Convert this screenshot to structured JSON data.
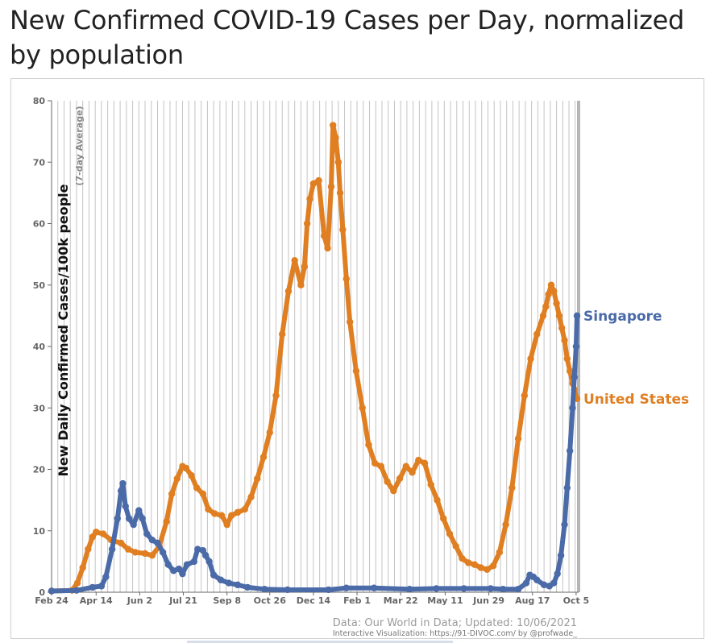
{
  "page": {
    "title": "New Confirmed COVID-19 Cases per Day, normalized by population"
  },
  "chart_data": {
    "type": "line",
    "title": "New Confirmed COVID-19 Cases per Day, normalized by population",
    "ylabel": "New Daily Confirmed Cases/100k people",
    "ylabel_sub": "(7-day Average)",
    "xlabel": "",
    "ylim": [
      0,
      80
    ],
    "y_ticks": [
      0,
      10,
      20,
      30,
      40,
      50,
      60,
      70,
      80
    ],
    "x_range": [
      "2020-02-24",
      "2021-10-06"
    ],
    "x_ticks": [
      {
        "label": "Feb 24",
        "date": "2020-02-24"
      },
      {
        "label": "Apr 14",
        "date": "2020-04-14"
      },
      {
        "label": "Jun 2",
        "date": "2020-06-02"
      },
      {
        "label": "Jul 21",
        "date": "2020-07-21"
      },
      {
        "label": "Sep 8",
        "date": "2020-09-08"
      },
      {
        "label": "Oct 26",
        "date": "2020-10-26"
      },
      {
        "label": "Dec 14",
        "date": "2020-12-14"
      },
      {
        "label": "Feb 1",
        "date": "2021-02-01"
      },
      {
        "label": "Mar 22",
        "date": "2021-03-22"
      },
      {
        "label": "May 11",
        "date": "2021-05-11"
      },
      {
        "label": "Jun 29",
        "date": "2021-06-29"
      },
      {
        "label": "Aug 17",
        "date": "2021-08-17"
      },
      {
        "label": "Oct 5",
        "date": "2021-10-05"
      }
    ],
    "grid": "vertical weekly lines",
    "series": [
      {
        "name": "Singapore",
        "color": "#4a6aa8",
        "x": [
          "2020-02-24",
          "2020-03-23",
          "2020-04-10",
          "2020-04-20",
          "2020-04-25",
          "2020-05-02",
          "2020-05-08",
          "2020-05-12",
          "2020-05-14",
          "2020-05-17",
          "2020-05-21",
          "2020-05-26",
          "2020-06-01",
          "2020-06-05",
          "2020-06-10",
          "2020-06-16",
          "2020-06-22",
          "2020-06-28",
          "2020-07-04",
          "2020-07-10",
          "2020-07-16",
          "2020-07-20",
          "2020-07-25",
          "2020-08-02",
          "2020-08-06",
          "2020-08-12",
          "2020-08-15",
          "2020-08-19",
          "2020-08-24",
          "2020-09-01",
          "2020-09-10",
          "2020-09-20",
          "2020-10-01",
          "2020-10-20",
          "2020-11-15",
          "2020-12-31",
          "2021-01-20",
          "2021-02-20",
          "2021-04-01",
          "2021-05-01",
          "2021-06-01",
          "2021-07-01",
          "2021-07-15",
          "2021-08-01",
          "2021-08-10",
          "2021-08-14",
          "2021-08-18",
          "2021-08-22",
          "2021-08-30",
          "2021-09-05",
          "2021-09-10",
          "2021-09-14",
          "2021-09-18",
          "2021-09-22",
          "2021-09-25",
          "2021-09-28",
          "2021-10-01",
          "2021-10-03",
          "2021-10-05",
          "2021-10-06"
        ],
        "values": [
          0.2,
          0.3,
          0.8,
          1.0,
          2.5,
          7.0,
          12.0,
          16.5,
          17.7,
          14.0,
          12.0,
          11.0,
          13.3,
          12.0,
          9.5,
          8.5,
          8.0,
          6.5,
          4.5,
          3.5,
          3.8,
          3.0,
          4.5,
          5.0,
          7.0,
          6.8,
          6.0,
          5.0,
          2.8,
          2.0,
          1.5,
          1.2,
          0.8,
          0.5,
          0.4,
          0.4,
          0.7,
          0.7,
          0.5,
          0.6,
          0.6,
          0.6,
          0.5,
          0.5,
          1.5,
          2.8,
          2.5,
          2.0,
          1.2,
          1.0,
          1.5,
          3.0,
          6.0,
          11.0,
          17.0,
          23.0,
          30.0,
          35.0,
          40.0,
          45.0
        ]
      },
      {
        "name": "United States",
        "color": "#e07f22",
        "x": [
          "2020-02-24",
          "2020-03-18",
          "2020-03-24",
          "2020-03-30",
          "2020-04-05",
          "2020-04-10",
          "2020-04-14",
          "2020-04-22",
          "2020-05-01",
          "2020-05-12",
          "2020-05-20",
          "2020-05-28",
          "2020-06-08",
          "2020-06-16",
          "2020-06-24",
          "2020-07-02",
          "2020-07-08",
          "2020-07-14",
          "2020-07-20",
          "2020-07-24",
          "2020-07-30",
          "2020-08-05",
          "2020-08-12",
          "2020-08-18",
          "2020-08-25",
          "2020-09-02",
          "2020-09-08",
          "2020-09-13",
          "2020-09-20",
          "2020-09-28",
          "2020-10-05",
          "2020-10-12",
          "2020-10-19",
          "2020-10-26",
          "2020-11-02",
          "2020-11-09",
          "2020-11-16",
          "2020-11-23",
          "2020-11-30",
          "2020-12-04",
          "2020-12-07",
          "2020-12-10",
          "2020-12-14",
          "2020-12-20",
          "2020-12-26",
          "2020-12-30",
          "2021-01-03",
          "2021-01-05",
          "2021-01-08",
          "2021-01-11",
          "2021-01-13",
          "2021-01-16",
          "2021-01-20",
          "2021-01-24",
          "2021-01-31",
          "2021-02-07",
          "2021-02-14",
          "2021-02-21",
          "2021-02-28",
          "2021-03-07",
          "2021-03-14",
          "2021-03-21",
          "2021-03-28",
          "2021-04-04",
          "2021-04-11",
          "2021-04-18",
          "2021-04-25",
          "2021-05-02",
          "2021-05-09",
          "2021-05-16",
          "2021-05-23",
          "2021-05-30",
          "2021-06-06",
          "2021-06-13",
          "2021-06-20",
          "2021-06-27",
          "2021-07-04",
          "2021-07-11",
          "2021-07-18",
          "2021-07-25",
          "2021-08-01",
          "2021-08-08",
          "2021-08-15",
          "2021-08-22",
          "2021-08-29",
          "2021-09-01",
          "2021-09-04",
          "2021-09-07",
          "2021-09-10",
          "2021-09-13",
          "2021-09-16",
          "2021-09-19",
          "2021-09-22",
          "2021-09-25",
          "2021-09-28",
          "2021-10-01",
          "2021-10-03",
          "2021-10-06"
        ],
        "values": [
          0.2,
          0.3,
          1.5,
          4.0,
          7.0,
          9.0,
          9.8,
          9.5,
          8.5,
          8.0,
          7.0,
          6.5,
          6.3,
          6.0,
          7.5,
          11.5,
          16.0,
          18.5,
          20.5,
          20.2,
          19.0,
          17.0,
          16.0,
          13.5,
          12.8,
          12.5,
          11.0,
          12.5,
          13.0,
          13.5,
          15.5,
          18.5,
          22.0,
          26.0,
          32.0,
          42.0,
          49.0,
          54.0,
          50.0,
          53.0,
          60.0,
          64.0,
          66.5,
          67.0,
          58.0,
          56.0,
          66.0,
          76.0,
          74.0,
          70.0,
          65.0,
          59.0,
          51.0,
          44.0,
          36.0,
          30.0,
          24.0,
          21.0,
          20.5,
          18.0,
          16.5,
          18.5,
          20.5,
          19.5,
          21.5,
          21.0,
          17.5,
          15.0,
          12.0,
          9.5,
          7.5,
          5.5,
          4.8,
          4.5,
          4.0,
          3.7,
          4.3,
          6.5,
          11.0,
          17.0,
          25.0,
          32.0,
          38.0,
          42.0,
          45.0,
          46.5,
          48.5,
          50.0,
          49.0,
          47.0,
          45.0,
          43.0,
          41.0,
          38.0,
          36.0,
          34.0,
          33.0,
          31.5
        ]
      }
    ],
    "series_labels": [
      "Singapore",
      "United States"
    ],
    "annotations": {
      "source": "Data: Our World in Data; Updated: 10/06/2021",
      "credit": "Interactive Visualization: https://91-DIVOC.com/ by @profwade_"
    }
  }
}
